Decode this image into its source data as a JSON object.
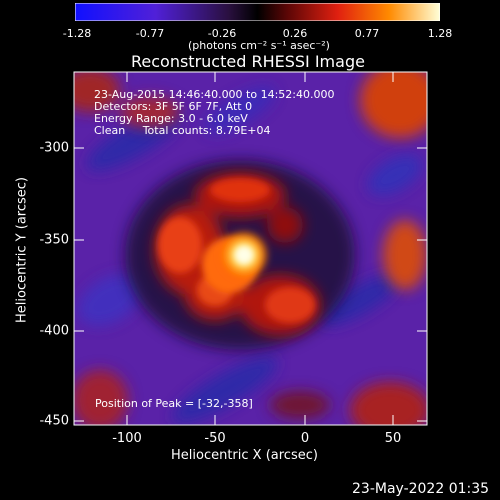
{
  "colorbar": {
    "tick_labels": [
      "-1.28",
      "-0.77",
      "-0.26",
      "0.26",
      "0.77",
      "1.28"
    ],
    "units_text": "(photons cm⁻² s⁻¹ asec⁻²)",
    "range": [
      -1.28,
      1.28
    ]
  },
  "title": "Reconstructed RHESSI Image",
  "annotations": {
    "time_range": "23-Aug-2015 14:46:40.000 to 14:52:40.000",
    "detectors": "Detectors: 3F 5F 6F 7F, Att 0",
    "energy_range": "Energy Range: 3.0 - 6.0 keV",
    "clean_counts": "Clean     Total counts: 8.79E+04",
    "peak_position": "Position of Peak = [-32,-358]"
  },
  "axes": {
    "xlabel": "Heliocentric X (arcsec)",
    "ylabel": "Heliocentric Y (arcsec)",
    "x_tick_labels": [
      "-100",
      "-50",
      "0",
      "50"
    ],
    "y_tick_labels": [
      "-300",
      "-350",
      "-400",
      "-450"
    ],
    "xlim": [
      -126,
      66
    ],
    "ylim": [
      -454,
      -259
    ]
  },
  "footer": {
    "timestamp": "23-May-2022 01:35"
  },
  "colors": {
    "background": "#000000",
    "text": "#ffffff",
    "colormap": [
      "#0000ff",
      "#7f3fbf",
      "#000000",
      "#b01010",
      "#ff6a00",
      "#ffffc0"
    ]
  }
}
